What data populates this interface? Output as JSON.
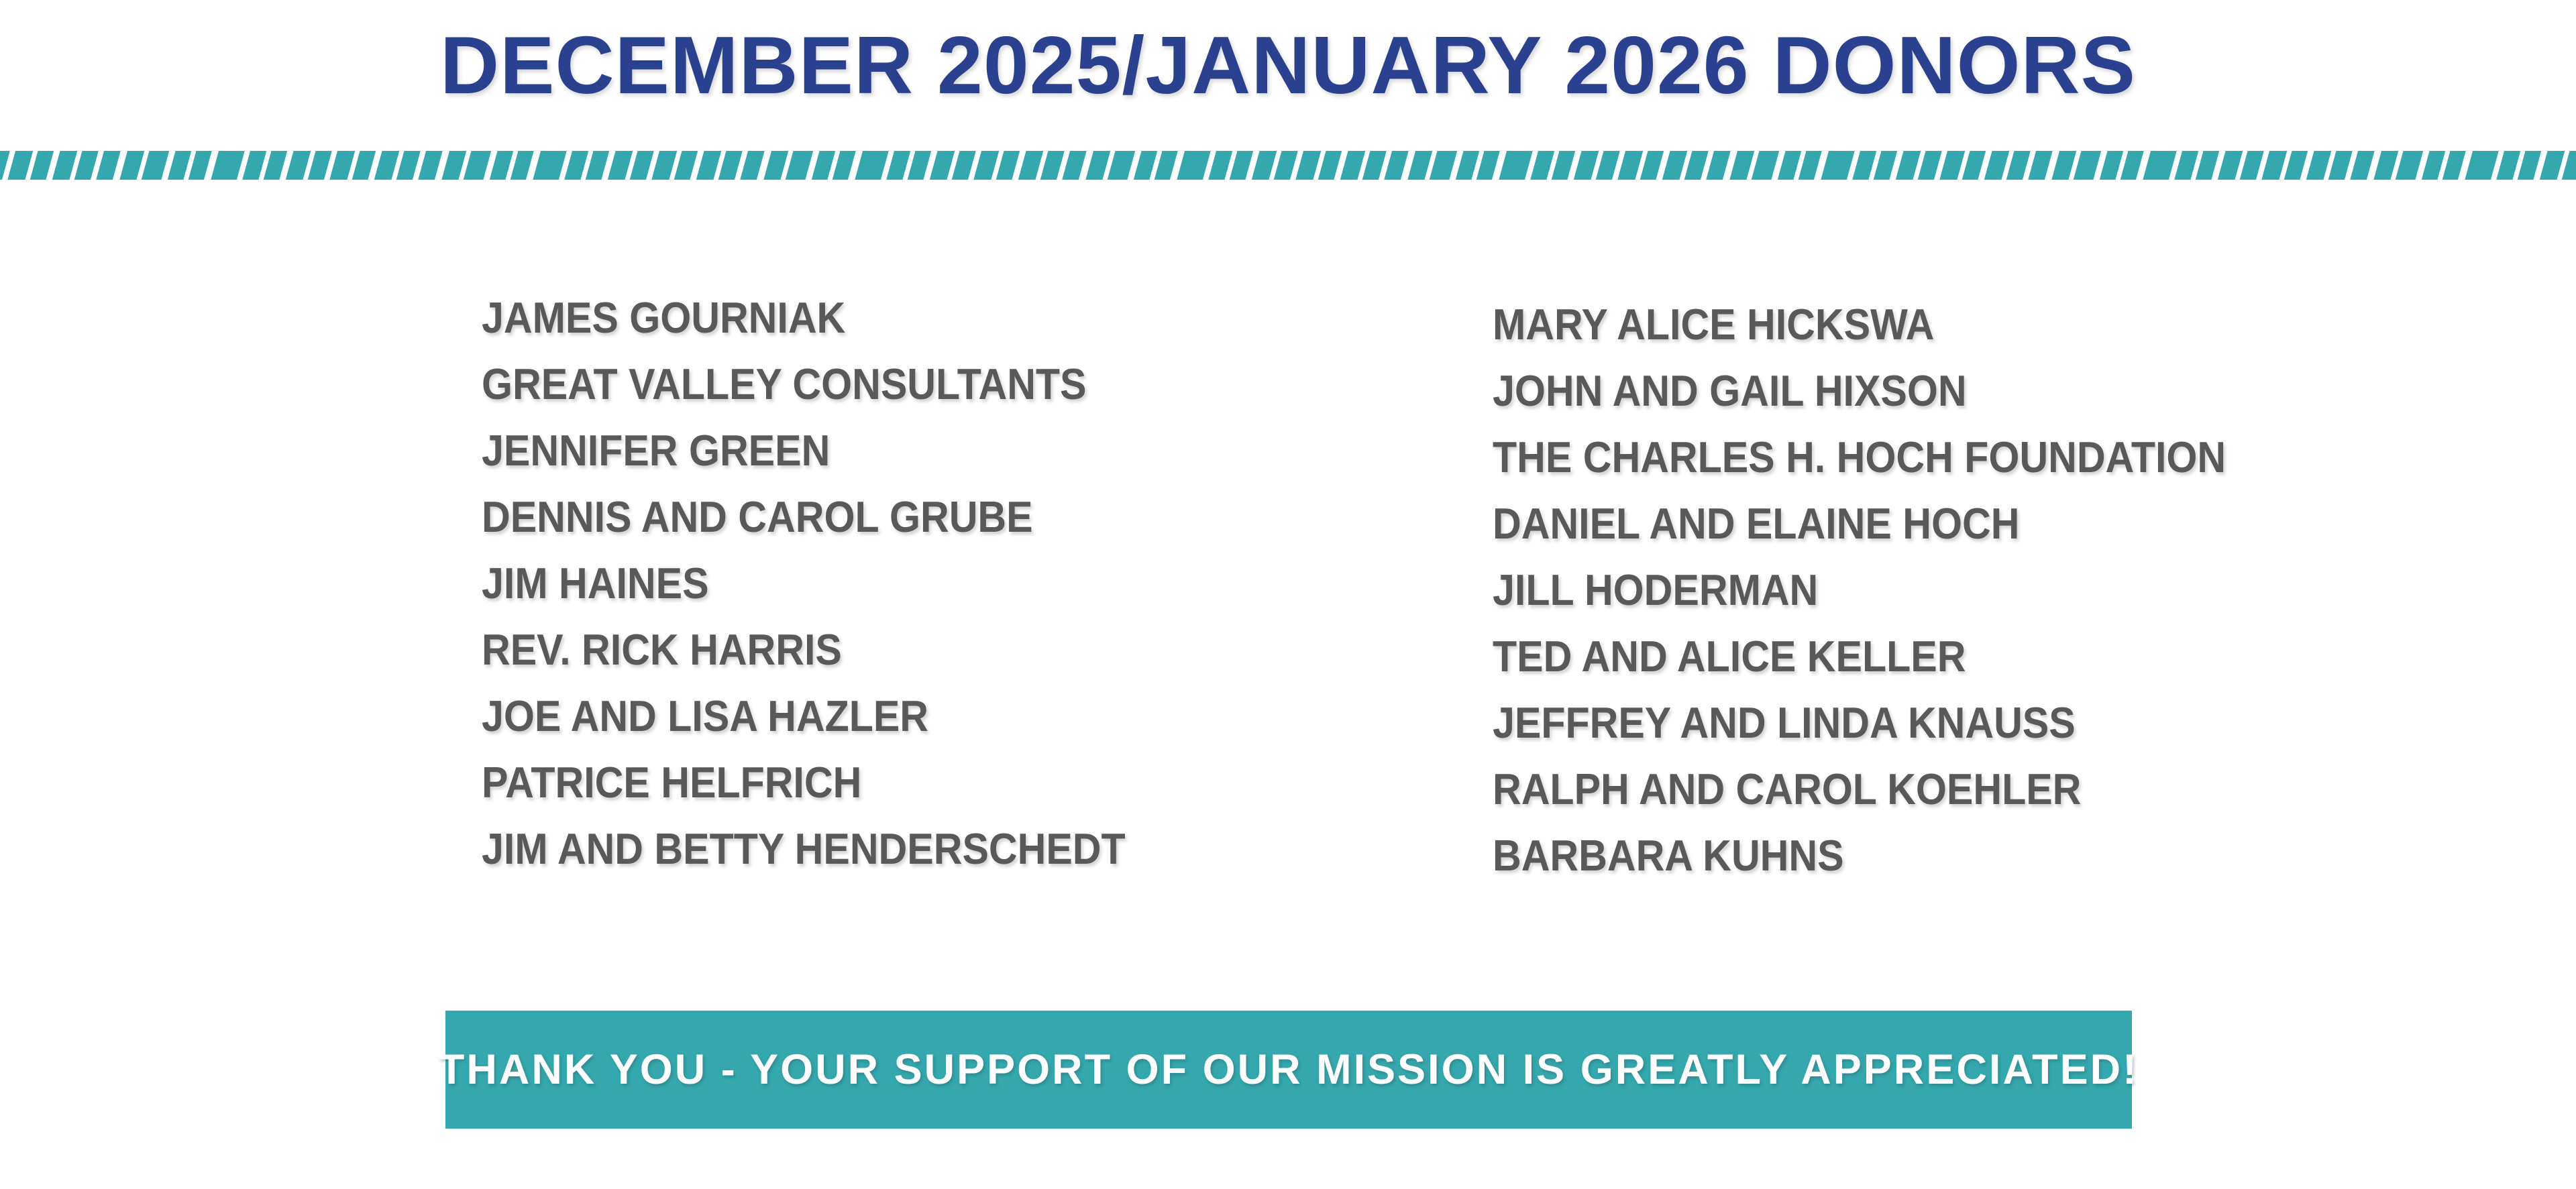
{
  "page": {
    "title": "DECEMBER 2025/JANUARY 2026 DONORS"
  },
  "colors": {
    "navy": "#2A4190",
    "gray": "#58595B",
    "teal": "#34A8AE"
  },
  "donors": {
    "left_column": [
      "JAMES GOURNIAK",
      "GREAT VALLEY CONSULTANTS",
      "JENNIFER GREEN",
      "DENNIS AND CAROL GRUBE",
      "JIM HAINES",
      "REV. RICK HARRIS",
      "JOE AND LISA HAZLER",
      "PATRICE HELFRICH",
      "JIM AND BETTY HENDERSCHEDT"
    ],
    "right_column": [
      "MARY ALICE HICKSWA",
      "JOHN AND GAIL HIXSON",
      "THE CHARLES H. HOCH FOUNDATION",
      "DANIEL AND ELAINE HOCH",
      "JILL HODERMAN",
      "TED AND ALICE KELLER",
      "JEFFREY AND LINDA KNAUSS",
      "RALPH AND CAROL KOEHLER",
      "BARBARA KUHNS"
    ]
  },
  "banner": {
    "message": "THANK YOU - YOUR SUPPORT OF OUR MISSION IS GREATLY APPRECIATED!"
  },
  "decorations": {
    "stripe_band": "teal-brush-stripe-divider"
  }
}
